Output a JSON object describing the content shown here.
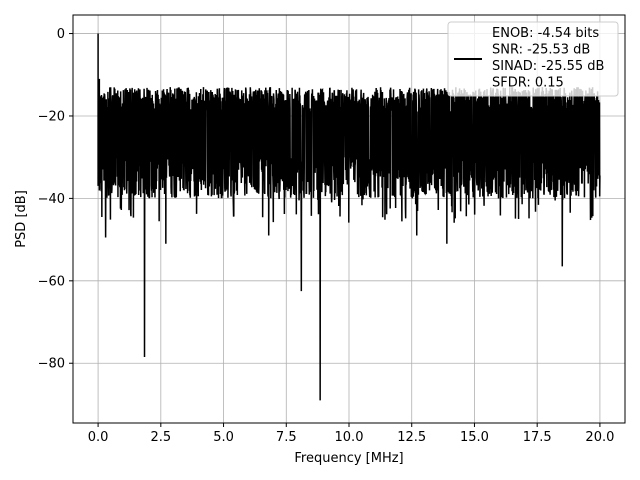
{
  "chart_data": {
    "type": "line",
    "title": "",
    "xlabel": "Frequency [MHz]",
    "ylabel": "PSD [dB]",
    "xlim": [
      -1.0,
      21.0
    ],
    "ylim": [
      -94.5,
      4.5
    ],
    "xticks": [
      0.0,
      2.5,
      5.0,
      7.5,
      10.0,
      12.5,
      15.0,
      17.5,
      20.0
    ],
    "xtick_labels": [
      "0.0",
      "2.5",
      "5.0",
      "7.5",
      "10.0",
      "12.5",
      "15.0",
      "17.5",
      "20.0"
    ],
    "yticks": [
      0,
      -20,
      -40,
      -60,
      -80
    ],
    "ytick_labels": [
      "0",
      "−20",
      "−40",
      "−60",
      "−80"
    ],
    "grid": true,
    "legend_position": "top-right",
    "legend_entries": [
      "ENOB: -4.54 bits",
      "SNR: -25.53 dB",
      "SINAD: -25.55 dB",
      "SFDR: 0.15"
    ],
    "series": [
      {
        "color": "#000000",
        "description": "Noisy power spectral density, dense band roughly between -12 dB and -40 dB across 0-20 MHz",
        "envelope_upper": -13,
        "envelope_lower": -36,
        "peaks": [
          {
            "x": 0.0,
            "y": 0
          },
          {
            "x": 0.05,
            "y": -11
          }
        ],
        "notable_dips": [
          {
            "x": 0.3,
            "y": -49.5
          },
          {
            "x": 1.85,
            "y": -78.5
          },
          {
            "x": 2.7,
            "y": -51
          },
          {
            "x": 8.1,
            "y": -62.5
          },
          {
            "x": 8.85,
            "y": -89
          },
          {
            "x": 6.8,
            "y": -49
          },
          {
            "x": 12.7,
            "y": -49
          },
          {
            "x": 13.9,
            "y": -51
          },
          {
            "x": 18.5,
            "y": -56.5
          }
        ]
      }
    ]
  }
}
